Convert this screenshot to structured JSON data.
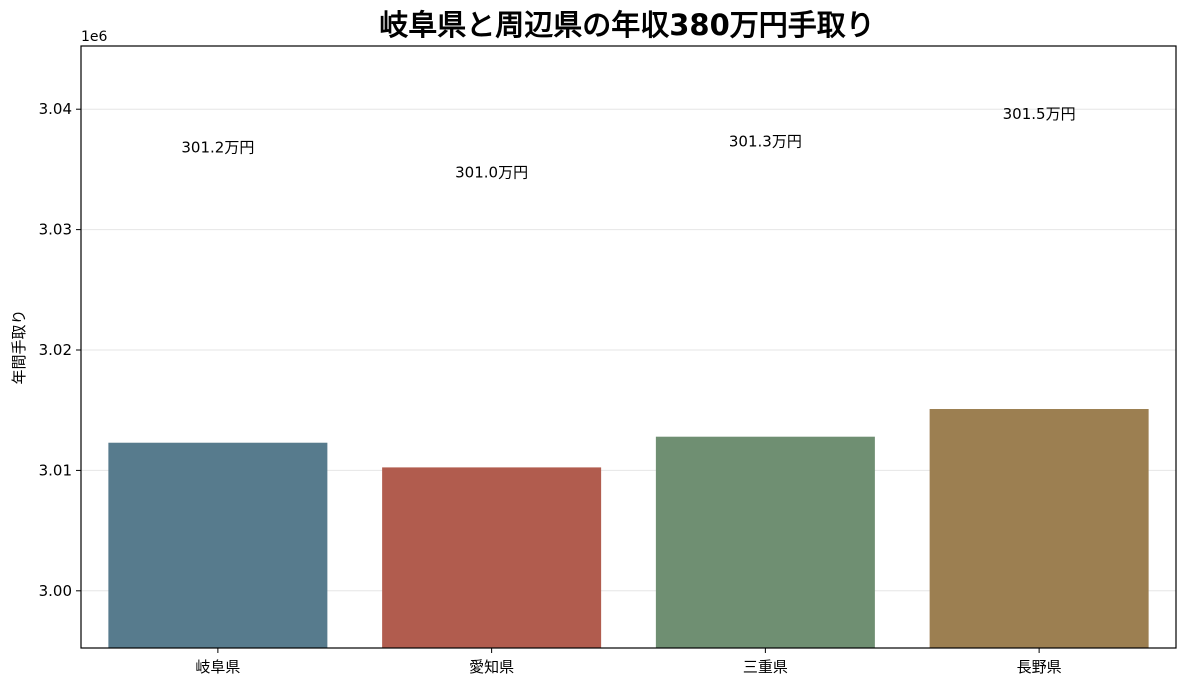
{
  "chart_data": {
    "type": "bar",
    "title": "岐阜県と周辺県の年収380万円手取り",
    "ylabel": "年間手取り",
    "y_offset_label": "1e6",
    "categories": [
      "岐阜県",
      "愛知県",
      "三重県",
      "長野県"
    ],
    "values": [
      3012300,
      3010250,
      3012800,
      3015100
    ],
    "data_labels": [
      "301.2万円",
      "301.0万円",
      "301.3万円",
      "301.5万円"
    ],
    "colors": [
      "#577b8d",
      "#b15c4e",
      "#6f8f72",
      "#9c7f51"
    ],
    "ylim": [
      2995250,
      3045250
    ],
    "yticks": [
      3000000,
      3010000,
      3020000,
      3030000,
      3040000
    ],
    "ytick_labels": [
      "3.00",
      "3.01",
      "3.02",
      "3.03",
      "3.04"
    ],
    "grid": "horizontal",
    "legend": "none"
  }
}
